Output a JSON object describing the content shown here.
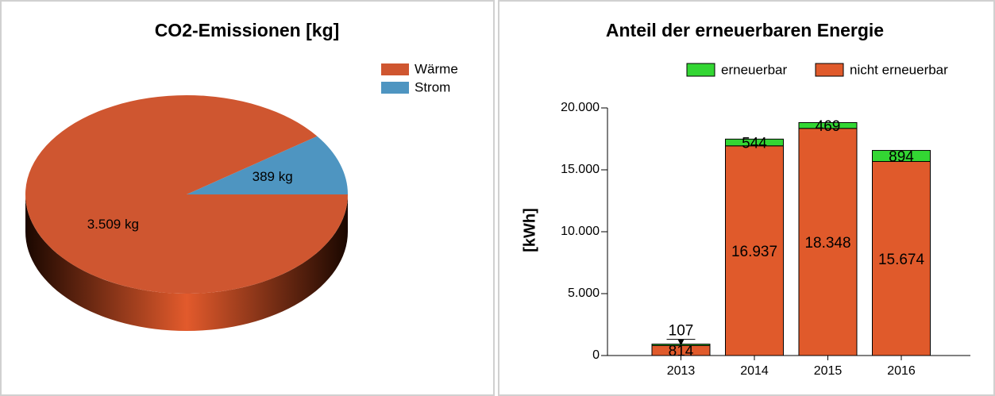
{
  "chart_data": [
    {
      "type": "pie",
      "title": "CO2-Emissionen [kg]",
      "categories": [
        "Wärme",
        "Strom"
      ],
      "values": [
        3509,
        389
      ],
      "value_labels": [
        "3.509 kg",
        "389 kg"
      ],
      "colors": [
        "#cf5630",
        "#4e95c1"
      ],
      "legend": "top-right"
    },
    {
      "type": "stacked_bar",
      "title": "Anteil der erneuerbaren Energie",
      "ylabel": "[kWh]",
      "categories": [
        "2013",
        "2014",
        "2015",
        "2016"
      ],
      "series": [
        {
          "name": "nicht erneuerbar",
          "color": "#e05a2b",
          "values": [
            814,
            16937,
            18348,
            15674
          ],
          "value_labels": [
            "814",
            "16.937",
            "18.348",
            "15.674"
          ]
        },
        {
          "name": "erneuerbar",
          "color": "#33d633",
          "values": [
            107,
            544,
            469,
            894
          ]
        }
      ],
      "ylim": [
        0,
        20000
      ],
      "yticks": [
        0,
        {
          "value": 5000,
          "label": "5.000"
        },
        {
          "value": 10000,
          "label": "10.000"
        },
        {
          "value": 15000,
          "label": "15.000"
        },
        {
          "value": 20000,
          "label": "20.000"
        }
      ],
      "grid": false,
      "legend": "top"
    }
  ]
}
